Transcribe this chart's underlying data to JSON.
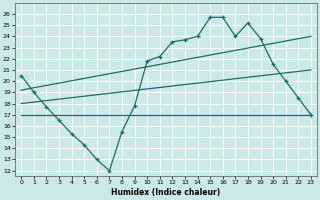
{
  "xlabel": "Humidex (Indice chaleur)",
  "xlim": [
    -0.5,
    23.5
  ],
  "ylim": [
    11.5,
    27
  ],
  "yticks": [
    12,
    13,
    14,
    15,
    16,
    17,
    18,
    19,
    20,
    21,
    22,
    23,
    24,
    25,
    26
  ],
  "xticks": [
    0,
    1,
    2,
    3,
    4,
    5,
    6,
    7,
    8,
    9,
    10,
    11,
    12,
    13,
    14,
    15,
    16,
    17,
    18,
    19,
    20,
    21,
    22,
    23
  ],
  "bg_color": "#cce9e9",
  "line_color": "#1a6b6b",
  "grid_color": "#ffffff",
  "line1_x": [
    0,
    1,
    2,
    3,
    4,
    5,
    6,
    7,
    8,
    9,
    10,
    11,
    12,
    13,
    14,
    15,
    16,
    17,
    18,
    19,
    20,
    21,
    22,
    23
  ],
  "line1_y": [
    20.5,
    19.0,
    17.7,
    16.5,
    15.3,
    14.3,
    13.0,
    12.0,
    15.5,
    17.8,
    21.8,
    22.2,
    23.5,
    23.7,
    24.0,
    25.7,
    25.7,
    24.0,
    25.2,
    23.8,
    21.5,
    20.0,
    18.5,
    17.0
  ],
  "line2_x": [
    0,
    23
  ],
  "line2_y": [
    19.2,
    24.0
  ],
  "line3_x": [
    0,
    23
  ],
  "line3_y": [
    18.0,
    21.0
  ],
  "line4_x": [
    0,
    10,
    14,
    23
  ],
  "line4_y": [
    17.0,
    17.0,
    17.0,
    17.0
  ]
}
